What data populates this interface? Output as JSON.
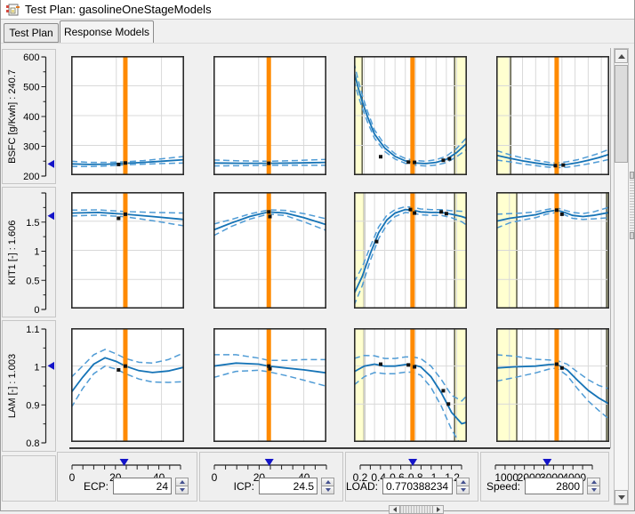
{
  "window": {
    "title": "Test Plan: gasolineOneStageModels"
  },
  "tabs": [
    {
      "label": "Test Plan",
      "selected": false
    },
    {
      "label": "Response Models",
      "selected": true
    }
  ],
  "colors": {
    "input_line": "#ff8a00",
    "curve": "#1573b6",
    "bound": "#4f9bd5",
    "boundary_band": "#ffffd0",
    "boundary_edge": "#62624e",
    "marker_blue": "#1414c8",
    "grid": "#d9d9d9",
    "plot_border": "#2b2b2b",
    "point": "#111111"
  },
  "rows": [
    {
      "name": "BSFC",
      "label": "BSFC [g/Kwh] : 240.7",
      "value": 240.7,
      "range": [
        200,
        600
      ],
      "ticks": [
        [
          200,
          "200"
        ],
        [
          300,
          "300"
        ],
        [
          400,
          "400"
        ],
        [
          500,
          "500"
        ],
        [
          600,
          "600"
        ]
      ],
      "minor_step": 50,
      "grid": [
        300,
        400,
        500
      ]
    },
    {
      "name": "KIT1",
      "label": "KIT1 [-] : 1.606",
      "value": 1.606,
      "range": [
        0,
        2
      ],
      "ticks": [
        [
          0,
          "0"
        ],
        [
          0.5,
          "0.5"
        ],
        [
          1,
          "1"
        ],
        [
          1.5,
          "1.5"
        ]
      ],
      "minor_step": 0.25,
      "grid": [
        0.5,
        1,
        1.5
      ]
    },
    {
      "name": "LAM",
      "label": "LAM [-] : 1.003",
      "value": 1.003,
      "range": [
        0.8,
        1.1
      ],
      "ticks": [
        [
          0.8,
          "0.8"
        ],
        [
          0.9,
          "0.9"
        ],
        [
          1,
          "1"
        ],
        [
          1.1,
          "1.1"
        ]
      ],
      "minor_step": 0.05,
      "grid": [
        0.9,
        1
      ]
    }
  ],
  "columns": [
    {
      "name": "ECP",
      "label": "ECP:",
      "value": "24",
      "numeric": 24,
      "range": [
        0,
        50
      ],
      "slider_ticks": [
        [
          0,
          "0"
        ],
        [
          20,
          "20"
        ],
        [
          40,
          "40"
        ]
      ],
      "grid": [
        20,
        40
      ],
      "input_width": 58,
      "align": "right"
    },
    {
      "name": "ICP",
      "label": "ICP:",
      "value": "24.5",
      "numeric": 24.5,
      "range": [
        0,
        50
      ],
      "slider_ticks": [
        [
          0,
          "0"
        ],
        [
          20,
          "20"
        ],
        [
          40,
          "40"
        ]
      ],
      "grid": [
        20,
        40
      ],
      "input_width": 58,
      "align": "right"
    },
    {
      "name": "LOAD",
      "label": "LOAD:",
      "value": "0.770388234",
      "numeric": 0.770388234,
      "range": [
        0.2,
        1.3
      ],
      "slider_ticks": [
        [
          0.2,
          "0.2"
        ],
        [
          0.4,
          "0.4"
        ],
        [
          0.6,
          "0.6"
        ],
        [
          0.8,
          "0.8"
        ],
        [
          1,
          "1"
        ],
        [
          1.2,
          "1.2"
        ]
      ],
      "grid": [
        0.3,
        0.4,
        0.5,
        0.6,
        0.7,
        0.8,
        0.9,
        1.0,
        1.1,
        1.2
      ],
      "input_width": 74,
      "align": "left"
    },
    {
      "name": "Speed",
      "label": "Speed:",
      "value": "2800",
      "numeric": 2800,
      "range": [
        500,
        4800
      ],
      "slider_ticks": [
        [
          1000,
          "1000"
        ],
        [
          2000,
          "2000"
        ],
        [
          3000,
          "3000"
        ],
        [
          4000,
          "4000"
        ]
      ],
      "grid": [
        1000,
        1500,
        2000,
        2500,
        3000,
        3500,
        4000,
        4500
      ],
      "input_width": 58,
      "align": "right"
    }
  ],
  "cells": [
    [
      {
        "bands": [],
        "curve": [
          [
            0,
            238,
            9
          ],
          [
            8,
            236,
            7
          ],
          [
            16,
            237,
            6
          ],
          [
            24,
            240,
            5
          ],
          [
            32,
            243,
            6
          ],
          [
            40,
            247,
            8
          ],
          [
            50,
            252,
            11
          ]
        ],
        "points": [
          [
            21,
            236
          ],
          [
            24,
            241
          ]
        ]
      },
      {
        "bands": [],
        "curve": [
          [
            0,
            241,
            10
          ],
          [
            12,
            240,
            8
          ],
          [
            24.5,
            240,
            7
          ],
          [
            36,
            241,
            8
          ],
          [
            50,
            243,
            10
          ]
        ],
        "points": [
          [
            24.5,
            240
          ]
        ]
      },
      {
        "bands": [
          [
            0.2,
            0.28
          ],
          [
            1.18,
            1.3
          ]
        ],
        "curve": [
          [
            0.2,
            549,
            30
          ],
          [
            0.24,
            495,
            26
          ],
          [
            0.28,
            448,
            22
          ],
          [
            0.33,
            398,
            18
          ],
          [
            0.4,
            338,
            14
          ],
          [
            0.5,
            291,
            11
          ],
          [
            0.6,
            263,
            9
          ],
          [
            0.7,
            248,
            8
          ],
          [
            0.8,
            241,
            8
          ],
          [
            0.9,
            239,
            8
          ],
          [
            1,
            243,
            9
          ],
          [
            1.1,
            253,
            11
          ],
          [
            1.2,
            276,
            14
          ],
          [
            1.3,
            307,
            20
          ]
        ],
        "points": [
          [
            0.46,
            262
          ],
          [
            0.73,
            244
          ],
          [
            0.79,
            243
          ],
          [
            1.07,
            250
          ],
          [
            1.13,
            255
          ]
        ]
      },
      {
        "bands": [
          [
            500,
            1050
          ]
        ],
        "curve": [
          [
            500,
            267,
            16
          ],
          [
            1000,
            257,
            12
          ],
          [
            1500,
            248,
            10
          ],
          [
            2000,
            241,
            9
          ],
          [
            2500,
            235,
            8
          ],
          [
            2800,
            233,
            8
          ],
          [
            3200,
            236,
            9
          ],
          [
            3600,
            242,
            10
          ],
          [
            4000,
            250,
            12
          ],
          [
            4400,
            259,
            14
          ],
          [
            4800,
            270,
            17
          ]
        ],
        "points": [
          [
            2750,
            232
          ],
          [
            3050,
            234
          ]
        ]
      }
    ],
    [
      {
        "bands": [],
        "curve": [
          [
            0,
            1.64,
            0.05
          ],
          [
            12,
            1.65,
            0.045
          ],
          [
            24,
            1.62,
            0.045
          ],
          [
            36,
            1.58,
            0.07
          ],
          [
            50,
            1.53,
            0.11
          ]
        ],
        "points": [
          [
            21,
            1.55
          ],
          [
            24,
            1.62
          ]
        ]
      },
      {
        "bands": [],
        "curve": [
          [
            0,
            1.35,
            0.1
          ],
          [
            8,
            1.47,
            0.06
          ],
          [
            16,
            1.58,
            0.045
          ],
          [
            24.5,
            1.66,
            0.035
          ],
          [
            32,
            1.64,
            0.045
          ],
          [
            40,
            1.56,
            0.07
          ],
          [
            50,
            1.44,
            0.1
          ]
        ],
        "points": [
          [
            24.5,
            1.66
          ],
          [
            25,
            1.58
          ]
        ]
      },
      {
        "bands": [
          [
            0.2,
            0.3
          ],
          [
            1.18,
            1.3
          ]
        ],
        "curve": [
          [
            0.2,
            0.25,
            0.2
          ],
          [
            0.28,
            0.55,
            0.16
          ],
          [
            0.36,
            0.95,
            0.12
          ],
          [
            0.44,
            1.3,
            0.1
          ],
          [
            0.52,
            1.52,
            0.08
          ],
          [
            0.6,
            1.64,
            0.06
          ],
          [
            0.7,
            1.7,
            0.05
          ],
          [
            0.77,
            1.69,
            0.05
          ],
          [
            0.85,
            1.66,
            0.05
          ],
          [
            0.95,
            1.65,
            0.05
          ],
          [
            1.05,
            1.65,
            0.05
          ],
          [
            1.15,
            1.62,
            0.06
          ],
          [
            1.25,
            1.58,
            0.09
          ],
          [
            1.3,
            1.55,
            0.12
          ]
        ],
        "points": [
          [
            0.42,
            1.15
          ],
          [
            0.75,
            1.7
          ],
          [
            0.79,
            1.64
          ],
          [
            1.05,
            1.66
          ],
          [
            1.1,
            1.63
          ]
        ]
      },
      {
        "bands": [
          [
            500,
            1280
          ],
          [
            4700,
            4800
          ]
        ],
        "curve": [
          [
            500,
            1.5,
            0.12
          ],
          [
            1000,
            1.55,
            0.08
          ],
          [
            1500,
            1.58,
            0.06
          ],
          [
            2000,
            1.61,
            0.05
          ],
          [
            2400,
            1.66,
            0.04
          ],
          [
            2800,
            1.69,
            0.04
          ],
          [
            3100,
            1.65,
            0.04
          ],
          [
            3400,
            1.6,
            0.05
          ],
          [
            3800,
            1.58,
            0.05
          ],
          [
            4200,
            1.6,
            0.06
          ],
          [
            4800,
            1.65,
            0.09
          ]
        ],
        "points": [
          [
            2800,
            1.69
          ],
          [
            3000,
            1.62
          ]
        ]
      }
    ],
    [
      {
        "bands": [],
        "curve": [
          [
            0,
            0.93,
            0.04
          ],
          [
            5,
            0.97,
            0.03
          ],
          [
            10,
            1.005,
            0.025
          ],
          [
            15,
            1.022,
            0.022
          ],
          [
            20,
            1.012,
            0.02
          ],
          [
            24,
            1.0,
            0.02
          ],
          [
            30,
            0.988,
            0.022
          ],
          [
            36,
            0.983,
            0.025
          ],
          [
            43,
            0.987,
            0.03
          ],
          [
            50,
            0.997,
            0.038
          ]
        ],
        "points": [
          [
            21,
            0.99
          ],
          [
            24,
            1.0
          ]
        ]
      },
      {
        "bands": [],
        "curve": [
          [
            0,
            1.0,
            0.03
          ],
          [
            10,
            1.008,
            0.022
          ],
          [
            20,
            1.005,
            0.016
          ],
          [
            24.5,
            1.0,
            0.015
          ],
          [
            32,
            0.995,
            0.02
          ],
          [
            40,
            0.99,
            0.027
          ],
          [
            50,
            0.982,
            0.035
          ]
        ],
        "points": [
          [
            24.5,
            1.0
          ],
          [
            25,
            0.993
          ]
        ]
      },
      {
        "bands": [
          [
            0.2,
            0.3
          ],
          [
            1.18,
            1.3
          ]
        ],
        "curve": [
          [
            0.2,
            0.985,
            0.035
          ],
          [
            0.3,
            1.0,
            0.028
          ],
          [
            0.4,
            1.005,
            0.022
          ],
          [
            0.5,
            1.0,
            0.02
          ],
          [
            0.6,
            1.0,
            0.02
          ],
          [
            0.7,
            1.004,
            0.02
          ],
          [
            0.77,
            1.004,
            0.02
          ],
          [
            0.85,
            0.998,
            0.022
          ],
          [
            0.95,
            0.972,
            0.028
          ],
          [
            1.05,
            0.93,
            0.035
          ],
          [
            1.15,
            0.878,
            0.045
          ],
          [
            1.25,
            0.848,
            0.06
          ],
          [
            1.3,
            0.852,
            0.07
          ]
        ],
        "points": [
          [
            0.46,
            1.005
          ],
          [
            0.73,
            1.003
          ],
          [
            0.79,
            0.998
          ],
          [
            1.07,
            0.935
          ],
          [
            1.12,
            0.9
          ]
        ]
      },
      {
        "bands": [
          [
            500,
            1280
          ],
          [
            4700,
            4800
          ]
        ],
        "curve": [
          [
            500,
            0.995,
            0.035
          ],
          [
            1200,
            0.998,
            0.028
          ],
          [
            2000,
            1.0,
            0.018
          ],
          [
            2500,
            1.004,
            0.012
          ],
          [
            2800,
            1.005,
            0.01
          ],
          [
            3200,
            0.99,
            0.015
          ],
          [
            3600,
            0.962,
            0.022
          ],
          [
            4000,
            0.936,
            0.028
          ],
          [
            4400,
            0.916,
            0.033
          ],
          [
            4800,
            0.9,
            0.04
          ]
        ],
        "points": [
          [
            2800,
            1.005
          ],
          [
            3000,
            0.995
          ]
        ]
      }
    ]
  ]
}
